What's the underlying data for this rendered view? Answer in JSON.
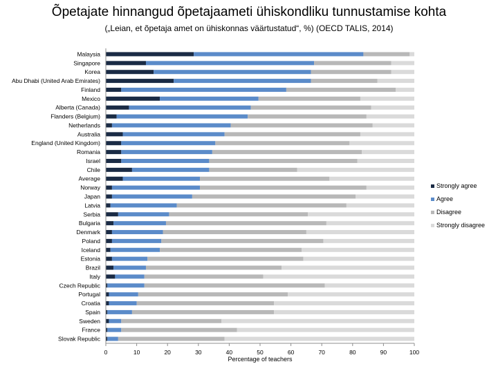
{
  "chart_data": {
    "type": "bar",
    "stacked": true,
    "orientation": "horizontal",
    "title": "Õpetajate hinnangud õpetajaameti ühiskondliku tunnustamise kohta",
    "subtitle": "(„Leian, et õpetaja amet on ühiskonnas väärtustatud“, %)  (OECD TALIS, 2014)",
    "xlabel": "Percentage of teachers",
    "xlim": [
      0,
      100
    ],
    "xticks": [
      0,
      10,
      20,
      30,
      40,
      50,
      60,
      70,
      80,
      90,
      100
    ],
    "grid": false,
    "legend_position": "right",
    "categories": [
      "Malaysia",
      "Singapore",
      "Korea",
      "Abu Dhabi (United Arab Emirates)",
      "Finland",
      "Mexico",
      "Alberta (Canada)",
      "Flanders (Belgium)",
      "Netherlands",
      "Australia",
      "England (United Kingdom)",
      "Romania",
      "Israel",
      "Chile",
      "Average",
      "Norway",
      "Japan",
      "Latvia",
      "Serbia",
      "Bulgaria",
      "Denmark",
      "Poland",
      "Iceland",
      "Estonia",
      "Brazil",
      "Italy",
      "Czech Republic",
      "Portugal",
      "Croatia",
      "Spain",
      "Sweden",
      "France",
      "Slovak Republic"
    ],
    "series": [
      {
        "name": "Strongly agree",
        "color": "#1a2b45",
        "values": [
          28.5,
          13,
          15.5,
          22,
          5,
          17.5,
          7.5,
          3.5,
          2,
          5.5,
          5,
          5,
          5,
          8.5,
          5.5,
          2,
          2,
          1.5,
          4,
          2.5,
          2,
          2,
          1.5,
          2,
          2.5,
          3,
          0.5,
          1,
          1,
          0.5,
          1,
          0.5,
          0.5
        ]
      },
      {
        "name": "Agree",
        "color": "#5b8bc9",
        "values": [
          55,
          54.5,
          51,
          44.5,
          53.5,
          32,
          39.5,
          42.5,
          38.5,
          33,
          30.5,
          29.5,
          28.5,
          25,
          25,
          28.5,
          26,
          21.5,
          16.5,
          17,
          16.5,
          16,
          16,
          11.5,
          10.5,
          9.5,
          12,
          9.5,
          9,
          8,
          4,
          4.5,
          3.5
        ]
      },
      {
        "name": "Disagree",
        "color": "#b8b8b8",
        "values": [
          15,
          25,
          26,
          21.5,
          35.5,
          33,
          39,
          38.5,
          46,
          44,
          43.5,
          48.5,
          48,
          28.5,
          42,
          54,
          53,
          55,
          45,
          52,
          46.5,
          52.5,
          46,
          50.5,
          44,
          38.5,
          58.5,
          48.5,
          44.5,
          46,
          32.5,
          37.5,
          34.5
        ]
      },
      {
        "name": "Strongly disagree",
        "color": "#dadada",
        "values": [
          1.5,
          7.5,
          7.5,
          12,
          6,
          17.5,
          14,
          15.5,
          13.5,
          17.5,
          21,
          17,
          18.5,
          38,
          27.5,
          15.5,
          19,
          22,
          34.5,
          28.5,
          35,
          29.5,
          36.5,
          36,
          43,
          49,
          29,
          41,
          45.5,
          45.5,
          62.5,
          57.5,
          61.5
        ]
      }
    ]
  }
}
